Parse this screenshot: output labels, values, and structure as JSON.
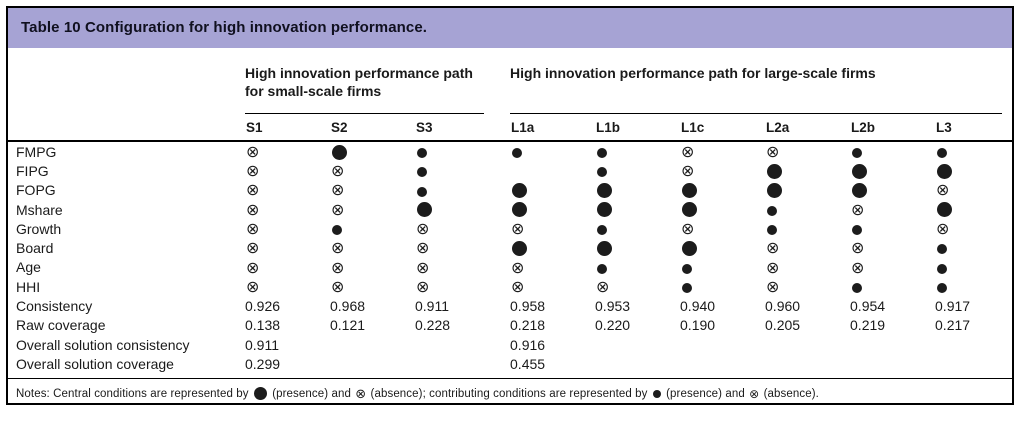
{
  "title": "Table 10 Configuration for high innovation performance.",
  "theme": {
    "title_bar_bg": "#a6a3d4",
    "title_text": "#10101f",
    "symbol_color": "#1c1c1c",
    "border_color": "#000000"
  },
  "groups": [
    {
      "label": "High innovation performance path for small-scale firms",
      "columns": [
        "S1",
        "S2",
        "S3"
      ]
    },
    {
      "label": "High innovation performance path for large-scale firms",
      "columns": [
        "L1a",
        "L1b",
        "L1c",
        "L2a",
        "L2b",
        "L3"
      ]
    }
  ],
  "columns": [
    "S1",
    "S2",
    "S3",
    "L1a",
    "L1b",
    "L1c",
    "L2a",
    "L2b",
    "L3"
  ],
  "symbol_key": {
    "CP": "central condition presence (large filled circle)",
    "p": "contributing condition presence (small filled circle)",
    "a": "condition absence (circled cross)",
    "": "blank cell"
  },
  "condition_rows": [
    {
      "label": "FMPG",
      "cells": [
        "a",
        "CP",
        "p",
        "p",
        "p",
        "a",
        "a",
        "p",
        "p"
      ]
    },
    {
      "label": "FIPG",
      "cells": [
        "a",
        "a",
        "p",
        "",
        "p",
        "a",
        "CP",
        "CP",
        "CP"
      ]
    },
    {
      "label": "FOPG",
      "cells": [
        "a",
        "a",
        "p",
        "CP",
        "CP",
        "CP",
        "CP",
        "CP",
        "a"
      ]
    },
    {
      "label": "Mshare",
      "cells": [
        "a",
        "a",
        "CP",
        "CP",
        "CP",
        "CP",
        "p",
        "a",
        "CP"
      ]
    },
    {
      "label": "Growth",
      "cells": [
        "a",
        "p",
        "a",
        "a",
        "p",
        "a",
        "p",
        "p",
        "a"
      ]
    },
    {
      "label": "Board",
      "cells": [
        "a",
        "a",
        "a",
        "CP",
        "CP",
        "CP",
        "a",
        "a",
        "p"
      ]
    },
    {
      "label": "Age",
      "cells": [
        "a",
        "a",
        "a",
        "a",
        "p",
        "p",
        "a",
        "a",
        "p"
      ]
    },
    {
      "label": "HHI",
      "cells": [
        "a",
        "a",
        "a",
        "a",
        "a",
        "p",
        "a",
        "p",
        "p"
      ]
    }
  ],
  "stat_rows": [
    {
      "label": "Consistency",
      "values": [
        "0.926",
        "0.968",
        "0.911",
        "0.958",
        "0.953",
        "0.940",
        "0.960",
        "0.954",
        "0.917"
      ]
    },
    {
      "label": "Raw coverage",
      "values": [
        "0.138",
        "0.121",
        "0.228",
        "0.218",
        "0.220",
        "0.190",
        "0.205",
        "0.219",
        "0.217"
      ]
    },
    {
      "label": "Overall solution consistency",
      "values": [
        "0.911",
        "",
        "",
        "0.916",
        "",
        "",
        "",
        "",
        ""
      ]
    },
    {
      "label": "Overall solution coverage",
      "values": [
        "0.299",
        "",
        "",
        "0.455",
        "",
        "",
        "",
        "",
        ""
      ]
    }
  ],
  "notes": {
    "s0": "Notes: Central conditions are represented by ",
    "s1": " (presence) and ",
    "s2": " (absence); contributing conditions are represented by ",
    "s3": " (presence) and ",
    "s4": " (absence)."
  }
}
